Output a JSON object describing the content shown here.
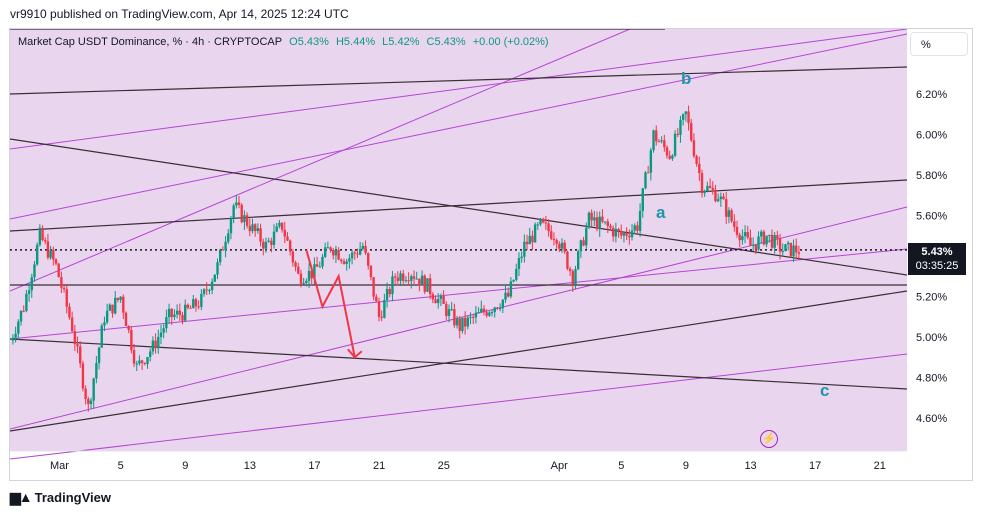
{
  "header": {
    "publisher_line": "vr9910 published on TradingView.com, Apr 14, 2025 12:24 UTC"
  },
  "legend": {
    "symbol": "Market Cap USDT Dominance, % · 4h · CRYPTOCAP",
    "open": "O5.43%",
    "high": "H5.44%",
    "low": "L5.42%",
    "close": "C5.43%",
    "change": "+0.00 (+0.02%)"
  },
  "scale_button": "%",
  "price_tag": {
    "value": "5.43%",
    "countdown": "03:35:25"
  },
  "wave_labels": {
    "a": "a",
    "b": "b",
    "c": "c"
  },
  "footer": {
    "brand": "TradingView"
  },
  "colors": {
    "up": "#089981",
    "down": "#f23645",
    "channel_fill": "#ead5ef",
    "channel_line": "#b545d4",
    "trendline": "#3a2e35",
    "arrow": "#f23645",
    "wave_label": "#2196a8"
  },
  "chart_data": {
    "type": "candlestick",
    "title": "Market Cap USDT Dominance, % · 4h · CRYPTOCAP",
    "x_ticks": [
      "Mar",
      "5",
      "9",
      "13",
      "17",
      "21",
      "25",
      "Apr",
      "5",
      "9",
      "13",
      "17",
      "21"
    ],
    "y_ticks": [
      "6.20%",
      "6.00%",
      "5.80%",
      "5.60%",
      "5.20%",
      "5.00%",
      "4.80%",
      "4.60%"
    ],
    "ylim": [
      4.47,
      6.47
    ],
    "last_price": 5.43,
    "series": [
      {
        "name": "price",
        "note": "approximate daily path of closes",
        "day_index": [
          -3,
          -2,
          -1,
          0,
          1,
          2,
          3,
          4,
          5,
          6,
          7,
          8,
          9,
          10,
          11,
          12,
          13,
          14,
          15,
          16,
          17,
          18,
          19,
          20,
          21,
          22,
          23,
          24,
          25,
          26,
          27,
          28,
          29,
          30,
          31,
          32,
          33,
          34,
          35,
          36,
          37,
          38,
          39,
          40,
          41,
          42,
          43,
          44,
          45,
          46
        ],
        "values": [
          4.95,
          5.15,
          5.5,
          5.35,
          5.05,
          4.65,
          5.1,
          5.2,
          4.85,
          4.95,
          5.1,
          5.12,
          5.18,
          5.35,
          5.65,
          5.55,
          5.45,
          5.55,
          5.3,
          5.32,
          5.45,
          5.38,
          5.45,
          5.1,
          5.3,
          5.32,
          5.25,
          5.15,
          5.05,
          5.1,
          5.15,
          5.2,
          5.45,
          5.55,
          5.5,
          5.3,
          5.58,
          5.55,
          5.5,
          5.55,
          6.0,
          5.9,
          6.1,
          5.75,
          5.7,
          5.55,
          5.45,
          5.5,
          5.43,
          5.43
        ]
      }
    ],
    "projection": {
      "points": [
        [
          15.5,
          5.43
        ],
        [
          16.5,
          5.15
        ],
        [
          17.5,
          5.3
        ],
        [
          18.5,
          4.9
        ]
      ]
    }
  }
}
